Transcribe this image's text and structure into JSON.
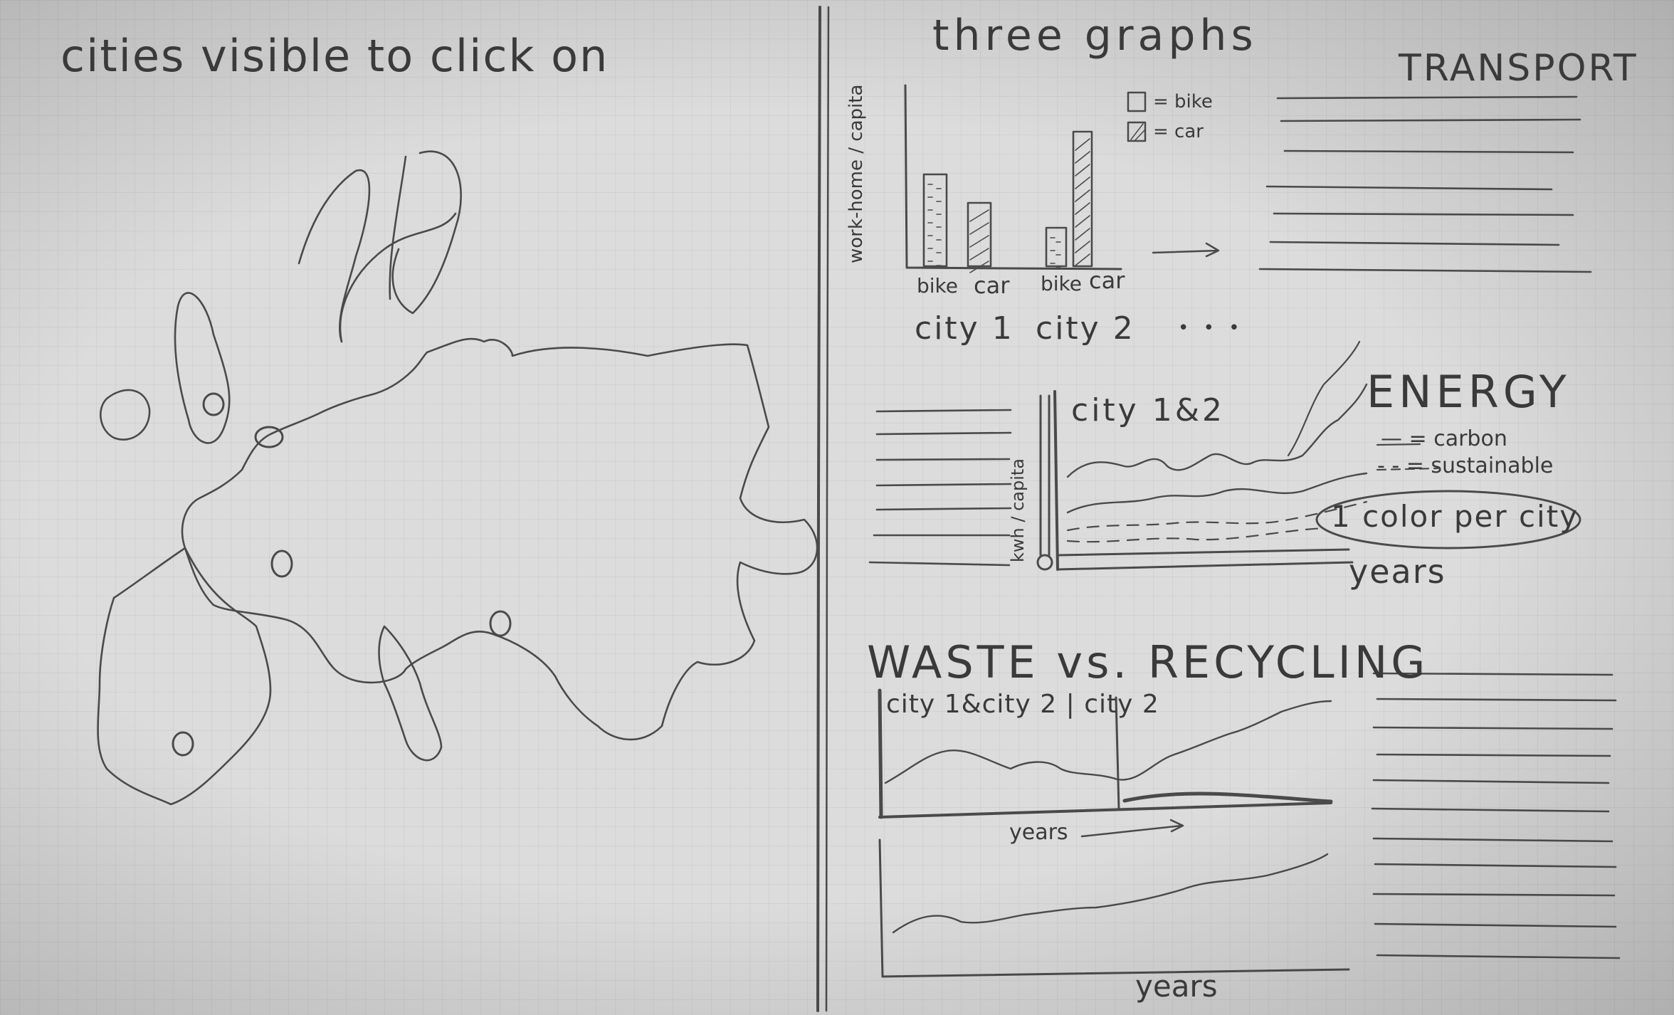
{
  "left_page": {
    "title": "cities visible to click on"
  },
  "right_page": {
    "header": "three graphs",
    "transport": {
      "title": "TRANSPORT",
      "ylabel": "work-home / capita",
      "legend": {
        "bike": "= bike",
        "car": "= car"
      },
      "bar_labels": [
        "bike",
        "car",
        "bike",
        "car"
      ],
      "groups": [
        "city 1",
        "city 2",
        "• • •"
      ]
    },
    "energy": {
      "title": "ENERGY",
      "subtitle": "city 1&2",
      "ylabel": "kwh / capita",
      "legend_carbon": "— = carbon",
      "legend_sustainable": "- - = sustainable",
      "note": "1 color per city",
      "xlabel": "years"
    },
    "waste": {
      "title": "WASTE vs. RECYCLING",
      "subtitle": "city 1&city 2 | city 2",
      "xlabel_top": "years",
      "xlabel_bottom": "years"
    }
  },
  "colors": {
    "ink": "#3a3a3a",
    "paper": "#dcdcdc",
    "grid": "#bdbdbd"
  }
}
